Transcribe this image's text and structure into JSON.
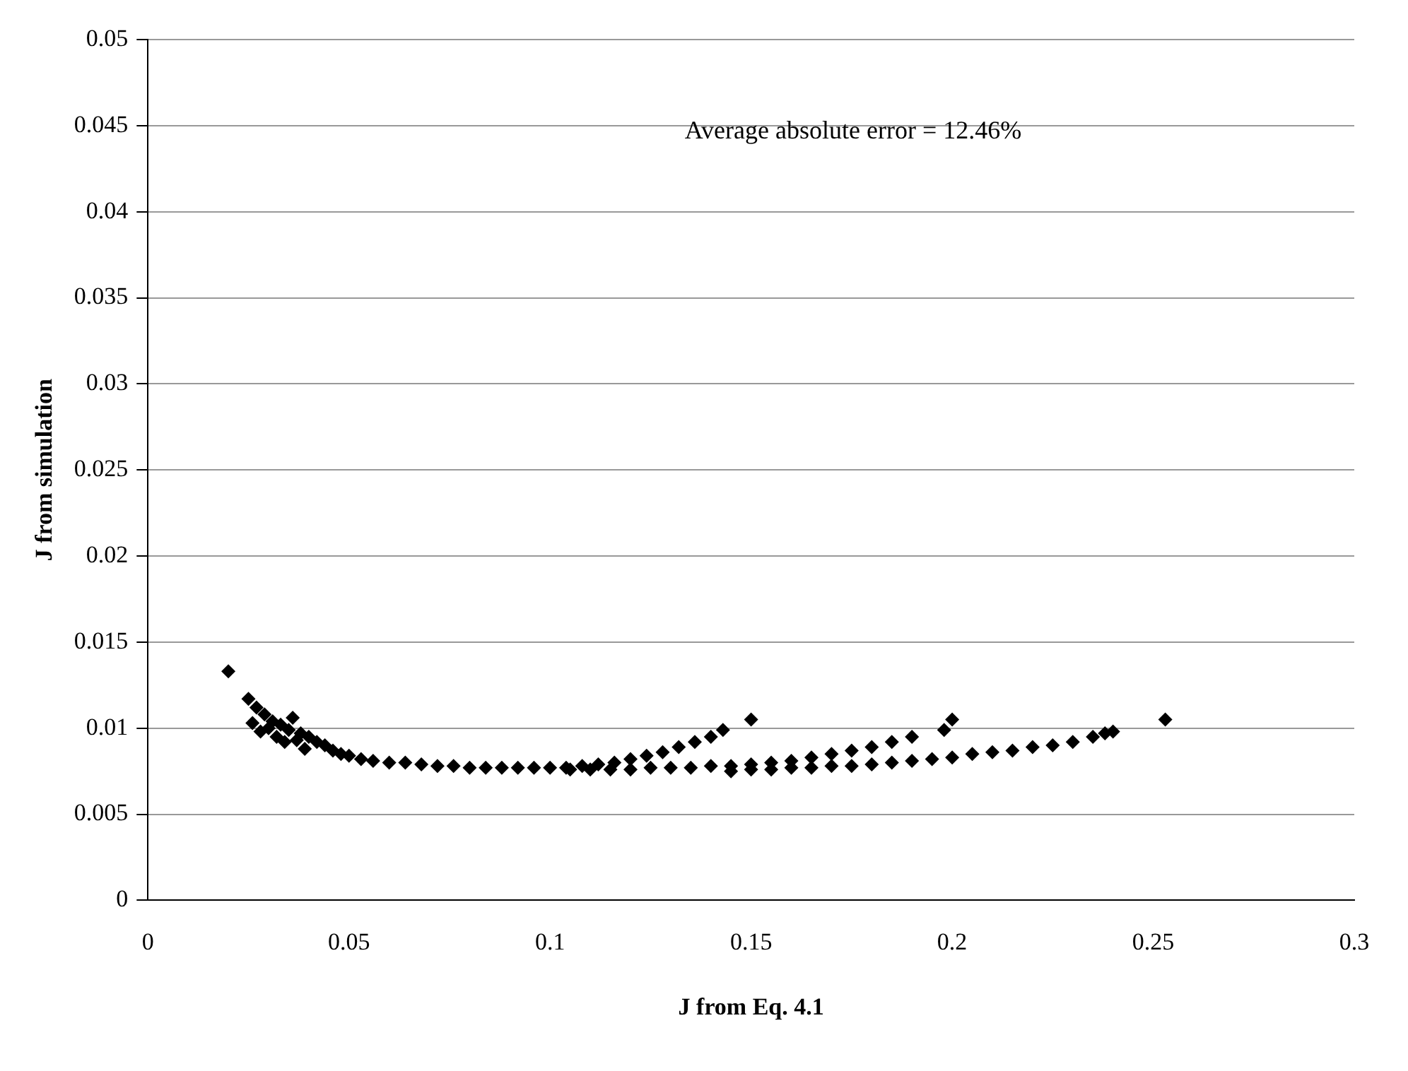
{
  "chart_data": {
    "type": "scatter",
    "xlabel": "J from Eq. 4.1",
    "ylabel": "J from simulation",
    "annotations": [
      "Average absolute error = 12.46%"
    ],
    "x": [
      0.02,
      0.025,
      0.026,
      0.027,
      0.028,
      0.029,
      0.03,
      0.031,
      0.032,
      0.033,
      0.034,
      0.035,
      0.036,
      0.037,
      0.038,
      0.039,
      0.04,
      0.042,
      0.044,
      0.046,
      0.048,
      0.05,
      0.053,
      0.056,
      0.06,
      0.064,
      0.068,
      0.072,
      0.076,
      0.08,
      0.084,
      0.088,
      0.092,
      0.096,
      0.1,
      0.104,
      0.108,
      0.112,
      0.116,
      0.12,
      0.124,
      0.128,
      0.132,
      0.136,
      0.14,
      0.143,
      0.15,
      0.105,
      0.11,
      0.115,
      0.12,
      0.125,
      0.13,
      0.135,
      0.14,
      0.145,
      0.15,
      0.155,
      0.16,
      0.165,
      0.17,
      0.175,
      0.18,
      0.185,
      0.19,
      0.198,
      0.2,
      0.145,
      0.15,
      0.155,
      0.16,
      0.165,
      0.17,
      0.175,
      0.18,
      0.185,
      0.19,
      0.195,
      0.2,
      0.205,
      0.21,
      0.215,
      0.22,
      0.225,
      0.23,
      0.235,
      0.238,
      0.24,
      0.253
    ],
    "values": [
      0.0133,
      0.0117,
      0.0103,
      0.0112,
      0.0098,
      0.0108,
      0.01,
      0.0104,
      0.0095,
      0.0102,
      0.0092,
      0.0099,
      0.0106,
      0.0093,
      0.0097,
      0.0088,
      0.0095,
      0.0092,
      0.009,
      0.0087,
      0.0085,
      0.0084,
      0.0082,
      0.0081,
      0.008,
      0.008,
      0.0079,
      0.0078,
      0.0078,
      0.0077,
      0.0077,
      0.0077,
      0.0077,
      0.0077,
      0.0077,
      0.0077,
      0.0078,
      0.0079,
      0.008,
      0.0082,
      0.0084,
      0.0086,
      0.0089,
      0.0092,
      0.0095,
      0.0099,
      0.0105,
      0.0076,
      0.0076,
      0.0076,
      0.0076,
      0.0077,
      0.0077,
      0.0077,
      0.0078,
      0.0078,
      0.0079,
      0.008,
      0.0081,
      0.0083,
      0.0085,
      0.0087,
      0.0089,
      0.0092,
      0.0095,
      0.0099,
      0.0105,
      0.0075,
      0.0076,
      0.0076,
      0.0077,
      0.0077,
      0.0078,
      0.0078,
      0.0079,
      0.008,
      0.0081,
      0.0082,
      0.0083,
      0.0085,
      0.0086,
      0.0087,
      0.0089,
      0.009,
      0.0092,
      0.0095,
      0.0097,
      0.0098,
      0.0105
    ],
    "color": "#000000",
    "marker": "diamond",
    "xlim": [
      0,
      0.3
    ],
    "xticks": [
      0,
      0.05,
      0.1,
      0.15,
      0.2,
      0.25,
      0.3
    ],
    "ylim": [
      0,
      0.05
    ],
    "yticks": [
      0,
      0.005,
      0.01,
      0.015,
      0.02,
      0.025,
      0.03,
      0.035,
      0.04,
      0.045,
      0.05
    ],
    "grid": "y",
    "legend": false
  }
}
